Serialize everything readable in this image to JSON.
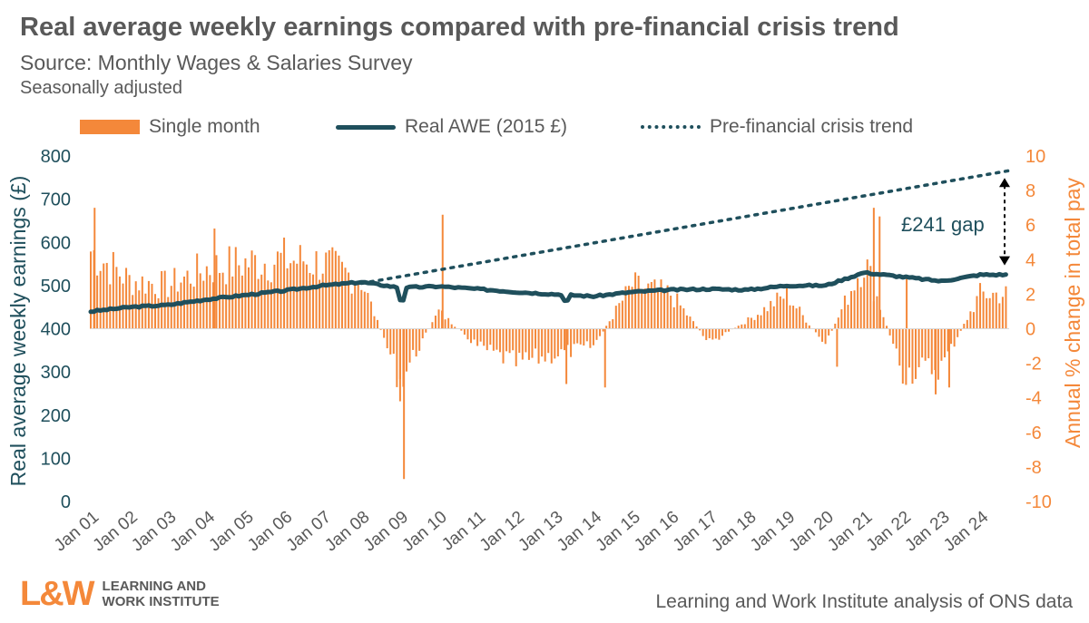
{
  "title": "Real average weekly earnings compared with pre-financial crisis trend",
  "subtitle": "Source: Monthly Wages & Salaries Survey",
  "note": "Seasonally adjusted",
  "legend": {
    "bar": "Single month",
    "line": "Real AWE (2015 £)",
    "trend": "Pre-financial crisis trend"
  },
  "annotation": "£241 gap",
  "footer": {
    "source": "Learning and Work Institute analysis of ONS data",
    "logo_mark": "L&W",
    "logo_line1": "LEARNING AND",
    "logo_line2": "WORK INSTITUTE"
  },
  "colors": {
    "bar": "#f4883a",
    "line": "#1f4f5c",
    "text": "#595959",
    "left_axis": "#1f4f5c",
    "right_axis": "#f4883a"
  },
  "chart_data": {
    "type": "bar+line",
    "x_ticks": [
      "Jan 01",
      "Jan 02",
      "Jan 03",
      "Jan 04",
      "Jan 05",
      "Jan 06",
      "Jan 07",
      "Jan 08",
      "Jan 09",
      "Jan 10",
      "Jan 11",
      "Jan 12",
      "Jan 13",
      "Jan 14",
      "Jan 15",
      "Jan 16",
      "Jan 17",
      "Jan 18",
      "Jan 19",
      "Jan 20",
      "Jan 21",
      "Jan 22",
      "Jan 23",
      "Jan 24"
    ],
    "y_left": {
      "label": "Real average weekly earnings (£)",
      "ticks": [
        0,
        100,
        200,
        300,
        400,
        500,
        600,
        700,
        800
      ],
      "lim": [
        0,
        800
      ]
    },
    "y_right": {
      "label": "Annual % change in total pay",
      "ticks": [
        10,
        8,
        6,
        4,
        2,
        0,
        -2,
        -4,
        -6,
        -8,
        -10
      ],
      "lim": [
        -10,
        10
      ]
    },
    "real_awe_annual": [
      {
        "year": 2001,
        "value": 440
      },
      {
        "year": 2002,
        "value": 450
      },
      {
        "year": 2003,
        "value": 455
      },
      {
        "year": 2004,
        "value": 468
      },
      {
        "year": 2005,
        "value": 478
      },
      {
        "year": 2006,
        "value": 488
      },
      {
        "year": 2007,
        "value": 500
      },
      {
        "year": 2008,
        "value": 508
      },
      {
        "year": 2009,
        "value": 495
      },
      {
        "year": 2010,
        "value": 498
      },
      {
        "year": 2011,
        "value": 492
      },
      {
        "year": 2012,
        "value": 485
      },
      {
        "year": 2013,
        "value": 480
      },
      {
        "year": 2014,
        "value": 475
      },
      {
        "year": 2015,
        "value": 485
      },
      {
        "year": 2016,
        "value": 490
      },
      {
        "year": 2017,
        "value": 492
      },
      {
        "year": 2018,
        "value": 490
      },
      {
        "year": 2019,
        "value": 500
      },
      {
        "year": 2020,
        "value": 500
      },
      {
        "year": 2021,
        "value": 530
      },
      {
        "year": 2022,
        "value": 520
      },
      {
        "year": 2023,
        "value": 510
      },
      {
        "year": 2024,
        "value": 525
      }
    ],
    "trend": {
      "start": {
        "year": 2008.0,
        "value": 505
      },
      "end": {
        "year": 2024.75,
        "value": 766
      }
    },
    "pay_growth_annual_pct": [
      {
        "year": 2001,
        "value": 4.5
      },
      {
        "year": 2002,
        "value": 2.8
      },
      {
        "year": 2003,
        "value": 2.5
      },
      {
        "year": 2004,
        "value": 3.5
      },
      {
        "year": 2005,
        "value": 3.8
      },
      {
        "year": 2006,
        "value": 4.0
      },
      {
        "year": 2007,
        "value": 3.8
      },
      {
        "year": 2008,
        "value": 2.8
      },
      {
        "year": 2009,
        "value": -3.0
      },
      {
        "year": 2010,
        "value": 1.0
      },
      {
        "year": 2011,
        "value": -1.0
      },
      {
        "year": 2012,
        "value": -2.0
      },
      {
        "year": 2013,
        "value": -1.5
      },
      {
        "year": 2014,
        "value": -1.0
      },
      {
        "year": 2015,
        "value": 2.5
      },
      {
        "year": 2016,
        "value": 2.0
      },
      {
        "year": 2017,
        "value": -0.8
      },
      {
        "year": 2018,
        "value": 0.5
      },
      {
        "year": 2019,
        "value": 2.0
      },
      {
        "year": 2020,
        "value": -1.0
      },
      {
        "year": 2021,
        "value": 4.0
      },
      {
        "year": 2022,
        "value": -2.5
      },
      {
        "year": 2023,
        "value": -2.2
      },
      {
        "year": 2024,
        "value": 2.0
      }
    ],
    "pay_growth_spikes": [
      {
        "year": 2001.1,
        "value": 7.0
      },
      {
        "year": 2004.2,
        "value": 5.8
      },
      {
        "year": 2006.5,
        "value": 3.9
      },
      {
        "year": 2009.1,
        "value": -8.7
      },
      {
        "year": 2009.0,
        "value": -4.2
      },
      {
        "year": 2010.1,
        "value": 6.6
      },
      {
        "year": 2013.3,
        "value": -3.2
      },
      {
        "year": 2014.3,
        "value": -3.4
      },
      {
        "year": 2020.3,
        "value": -2.2
      },
      {
        "year": 2021.25,
        "value": 7.0
      },
      {
        "year": 2021.4,
        "value": 6.5
      },
      {
        "year": 2022.1,
        "value": 3.0
      },
      {
        "year": 2022.85,
        "value": -3.8
      },
      {
        "year": 2023.2,
        "value": -3.4
      }
    ]
  }
}
